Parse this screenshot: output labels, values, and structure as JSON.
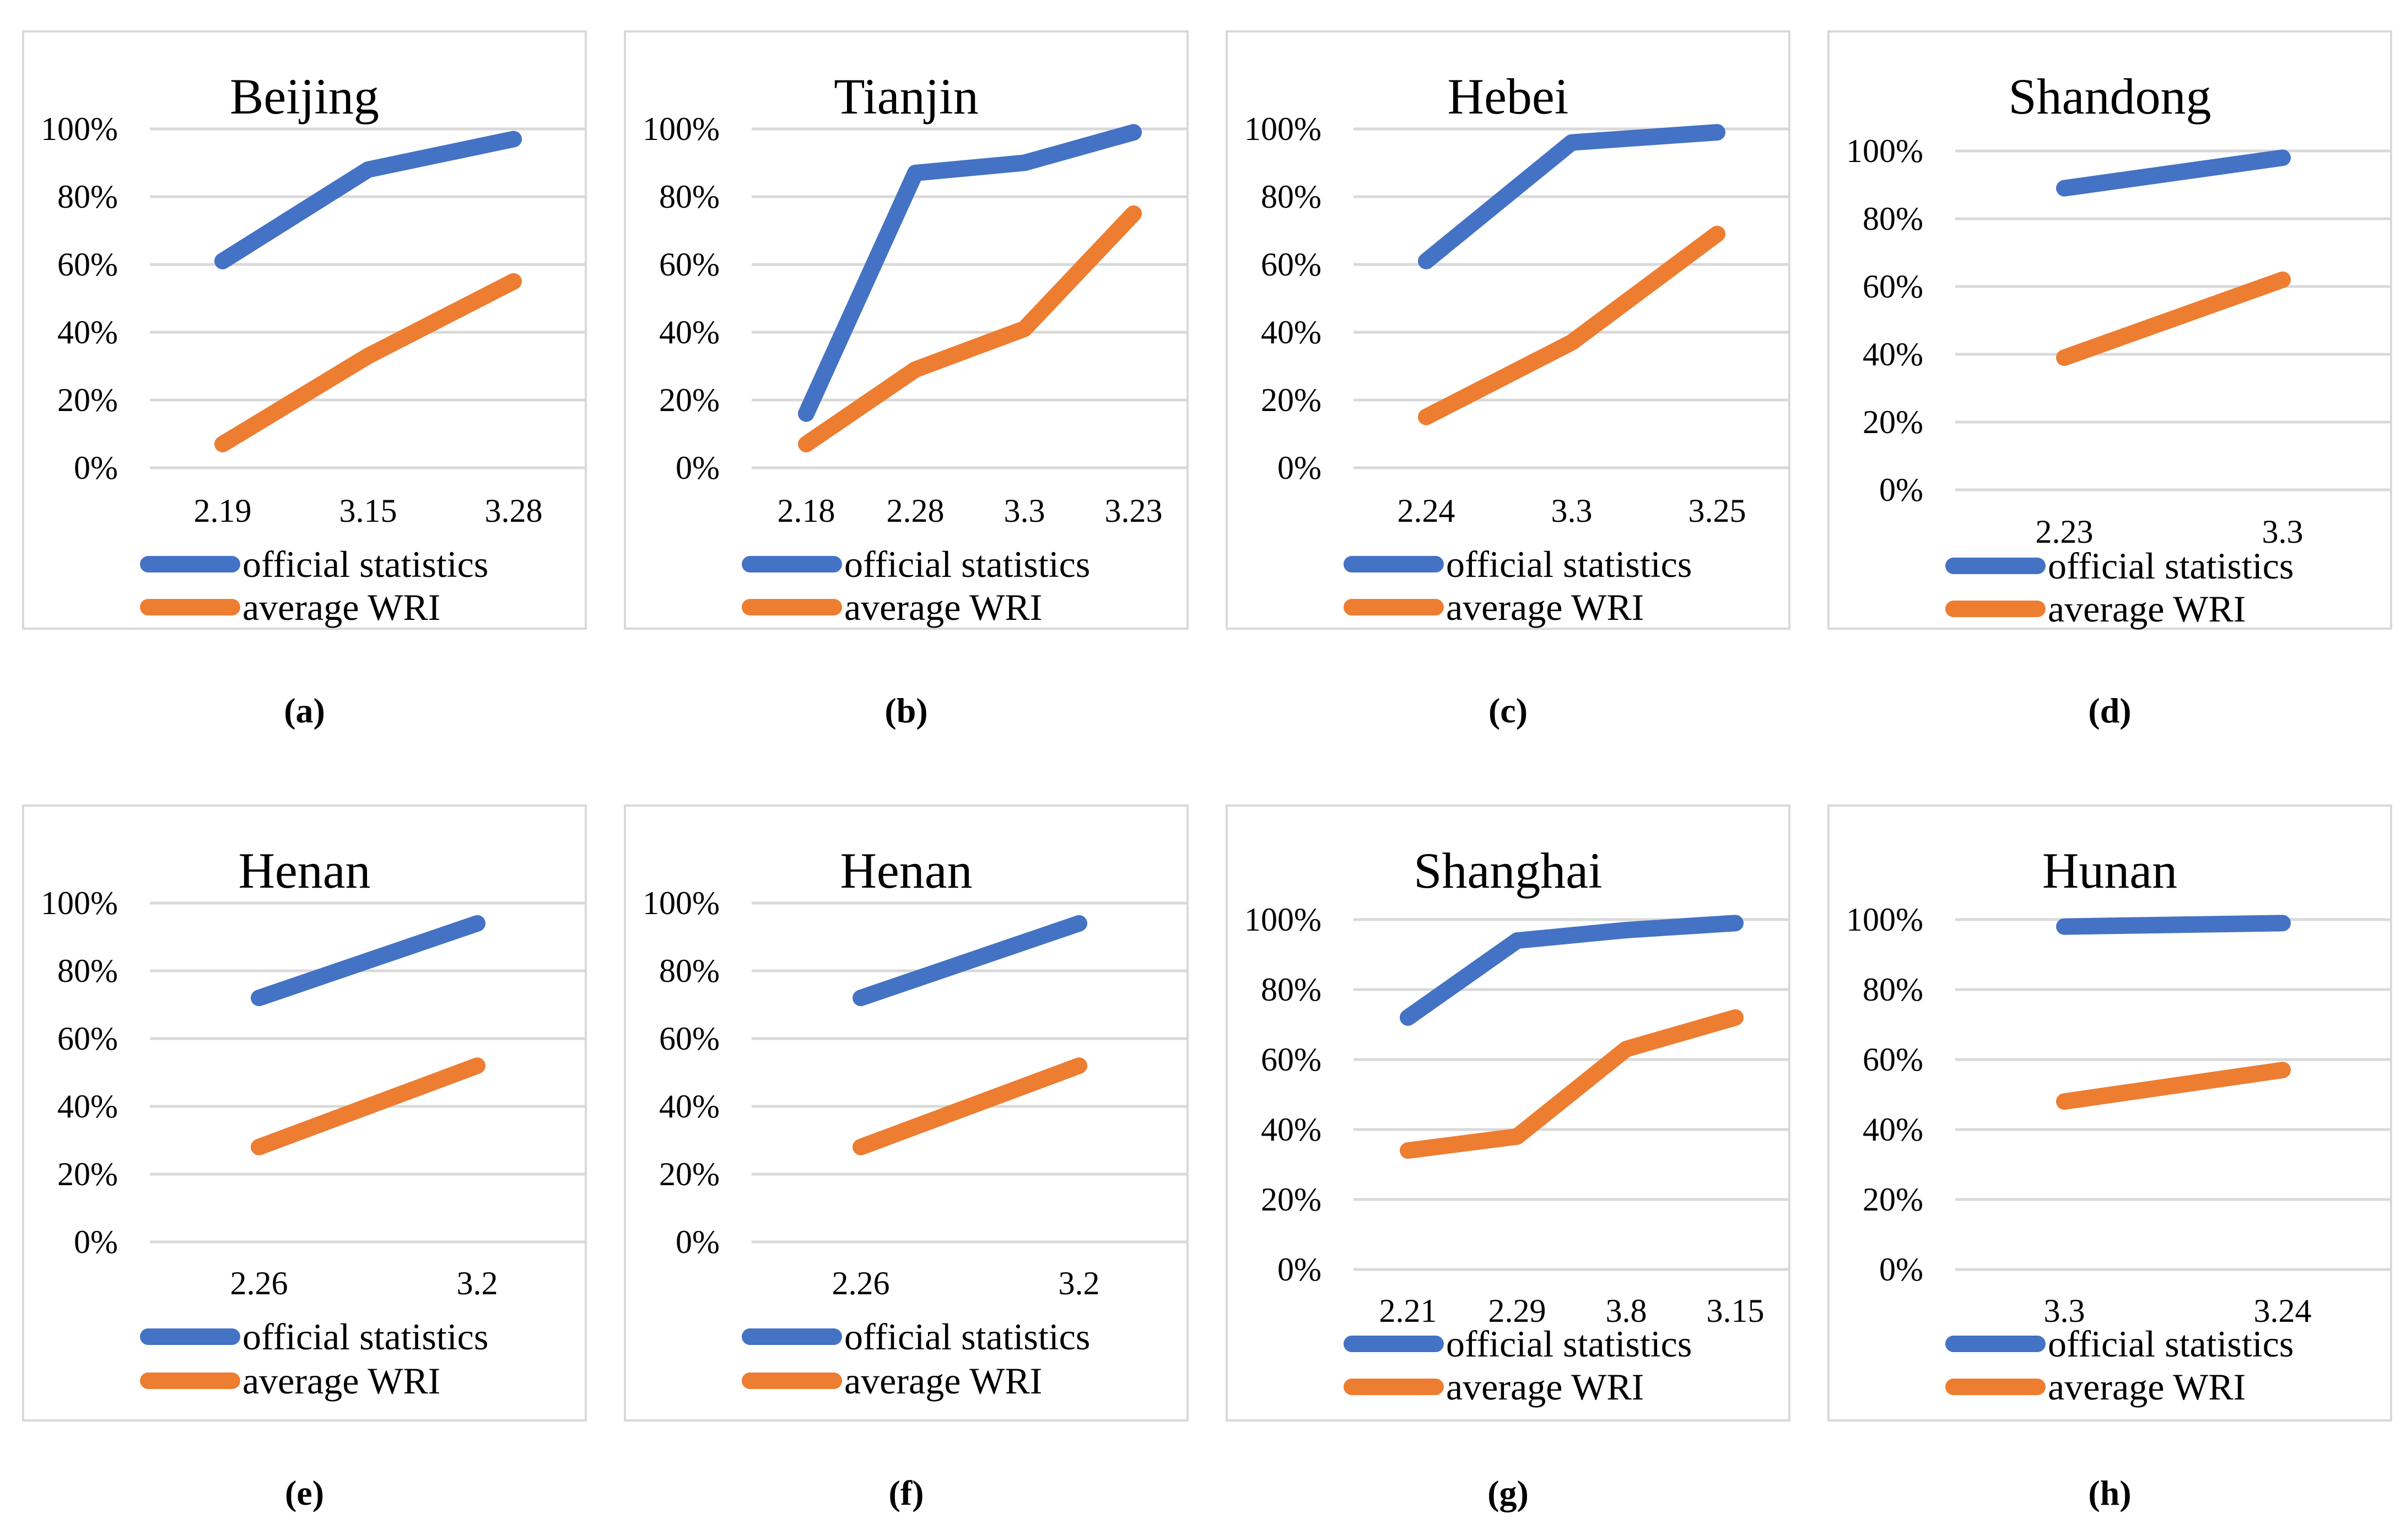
{
  "figure": {
    "y_ticks": [
      "100%",
      "80%",
      "60%",
      "40%",
      "20%",
      "0%"
    ],
    "colors": {
      "series_blue": "#4472C4",
      "series_orange": "#ED7D31",
      "gridline": "#D9D9D9",
      "panel_border": "#D9D9D9",
      "text": "#000000",
      "background": "#FFFFFF"
    }
  },
  "chart_data": [
    {
      "panel_label": "(a)",
      "type": "line",
      "title": "Beijing",
      "categories": [
        "2.19",
        "3.15",
        "3.28"
      ],
      "series": [
        {
          "name": "official statistics",
          "color": "#4472C4",
          "values": [
            61,
            88,
            97
          ]
        },
        {
          "name": "average WRI",
          "color": "#ED7D31",
          "values": [
            7,
            33,
            55
          ]
        }
      ],
      "ylim": [
        0,
        100
      ],
      "grid": true,
      "legend_position": "bottom-left",
      "layout_variant": "top"
    },
    {
      "panel_label": "(b)",
      "type": "line",
      "title": "Tianjin",
      "categories": [
        "2.18",
        "2.28",
        "3.3",
        "3.23"
      ],
      "series": [
        {
          "name": "official statistics",
          "color": "#4472C4",
          "values": [
            16,
            87,
            90,
            99
          ]
        },
        {
          "name": "average WRI",
          "color": "#ED7D31",
          "values": [
            7,
            29,
            41,
            75
          ]
        }
      ],
      "ylim": [
        0,
        100
      ],
      "grid": true,
      "legend_position": "bottom-left",
      "layout_variant": "top"
    },
    {
      "panel_label": "(c)",
      "type": "line",
      "title": "Hebei",
      "categories": [
        "2.24",
        "3.3",
        "3.25"
      ],
      "series": [
        {
          "name": "official statistics",
          "color": "#4472C4",
          "values": [
            61,
            96,
            99
          ]
        },
        {
          "name": "average WRI",
          "color": "#ED7D31",
          "values": [
            15,
            37,
            69
          ]
        }
      ],
      "ylim": [
        0,
        100
      ],
      "grid": true,
      "legend_position": "bottom-left",
      "layout_variant": "top"
    },
    {
      "panel_label": "(d)",
      "type": "line",
      "title": "Shandong",
      "categories": [
        "2.23",
        "3.3"
      ],
      "series": [
        {
          "name": "official statistics",
          "color": "#4472C4",
          "values": [
            89,
            98
          ]
        },
        {
          "name": "average WRI",
          "color": "#ED7D31",
          "values": [
            39,
            62
          ]
        }
      ],
      "ylim": [
        0,
        100
      ],
      "grid": true,
      "legend_position": "bottom-left",
      "layout_variant": "top-low"
    },
    {
      "panel_label": "(e)",
      "type": "line",
      "title": "Henan",
      "categories": [
        "2.26",
        "3.2"
      ],
      "series": [
        {
          "name": "official statistics",
          "color": "#4472C4",
          "values": [
            72,
            94
          ]
        },
        {
          "name": "average WRI",
          "color": "#ED7D31",
          "values": [
            28,
            52
          ]
        }
      ],
      "ylim": [
        0,
        100
      ],
      "grid": true,
      "legend_position": "bottom-left",
      "layout_variant": "bottom"
    },
    {
      "panel_label": "(f)",
      "type": "line",
      "title": "Henan",
      "categories": [
        "2.26",
        "3.2"
      ],
      "series": [
        {
          "name": "official statistics",
          "color": "#4472C4",
          "values": [
            72,
            94
          ]
        },
        {
          "name": "average WRI",
          "color": "#ED7D31",
          "values": [
            28,
            52
          ]
        }
      ],
      "ylim": [
        0,
        100
      ],
      "grid": true,
      "legend_position": "bottom-left",
      "layout_variant": "bottom"
    },
    {
      "panel_label": "(g)",
      "type": "line",
      "title": "Shanghai",
      "categories": [
        "2.21",
        "2.29",
        "3.8",
        "3.15"
      ],
      "series": [
        {
          "name": "official statistics",
          "color": "#4472C4",
          "values": [
            72,
            94,
            97,
            99
          ]
        },
        {
          "name": "average WRI",
          "color": "#ED7D31",
          "values": [
            34,
            38,
            63,
            72
          ]
        }
      ],
      "ylim": [
        0,
        100
      ],
      "grid": true,
      "legend_position": "bottom-left",
      "layout_variant": "bottom-low"
    },
    {
      "panel_label": "(h)",
      "type": "line",
      "title": "Hunan",
      "categories": [
        "3.3",
        "3.24"
      ],
      "series": [
        {
          "name": "official statistics",
          "color": "#4472C4",
          "values": [
            98,
            99
          ]
        },
        {
          "name": "average WRI",
          "color": "#ED7D31",
          "values": [
            48,
            57
          ]
        }
      ],
      "ylim": [
        0,
        100
      ],
      "grid": true,
      "legend_position": "bottom-left",
      "layout_variant": "bottom-low"
    }
  ]
}
